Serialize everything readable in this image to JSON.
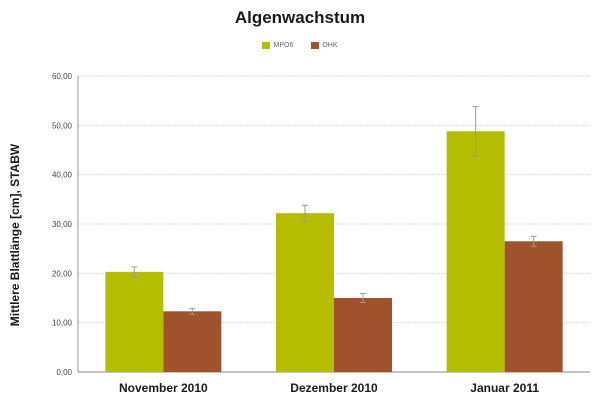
{
  "chart_data": {
    "type": "bar",
    "title": "Algenwachstum",
    "xlabel": "",
    "ylabel": "Mittlere Blattlänge [cm], STABW",
    "categories": [
      "November 2010",
      "Dezember 2010",
      "Januar 2011"
    ],
    "series": [
      {
        "name": "MPO6",
        "color": "#b5bd00",
        "values": [
          20.3,
          32.2,
          48.8
        ],
        "errors": [
          1.0,
          1.6,
          5.0
        ]
      },
      {
        "name": "OHK",
        "color": "#a0522d",
        "values": [
          12.3,
          15.0,
          26.5
        ],
        "errors": [
          0.6,
          0.9,
          1.0
        ]
      }
    ],
    "ylim": [
      0,
      60
    ],
    "yticks": [
      "0,00",
      "10,00",
      "20,00",
      "30,00",
      "40,00",
      "50,00",
      "60,00"
    ],
    "grid": true,
    "legend_position": "top-center"
  }
}
